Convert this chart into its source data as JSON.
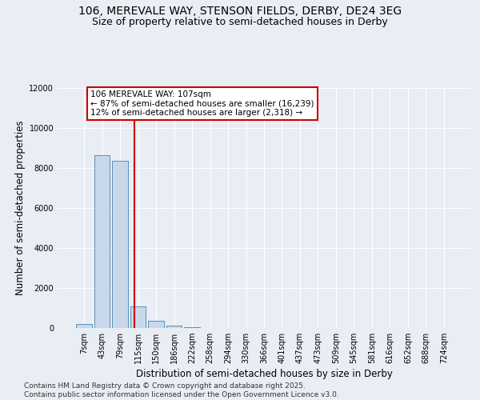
{
  "title_line1": "106, MEREVALE WAY, STENSON FIELDS, DERBY, DE24 3EG",
  "title_line2": "Size of property relative to semi-detached houses in Derby",
  "xlabel": "Distribution of semi-detached houses by size in Derby",
  "ylabel": "Number of semi-detached properties",
  "categories": [
    "7sqm",
    "43sqm",
    "79sqm",
    "115sqm",
    "150sqm",
    "186sqm",
    "222sqm",
    "258sqm",
    "294sqm",
    "330sqm",
    "366sqm",
    "401sqm",
    "437sqm",
    "473sqm",
    "509sqm",
    "545sqm",
    "581sqm",
    "616sqm",
    "652sqm",
    "688sqm",
    "724sqm"
  ],
  "values": [
    200,
    8650,
    8350,
    1100,
    350,
    120,
    30,
    0,
    0,
    0,
    0,
    0,
    0,
    0,
    0,
    0,
    0,
    0,
    0,
    0,
    0
  ],
  "bar_color": "#c8d8ea",
  "bar_edge_color": "#5590b8",
  "vline_x_pos": 2.78,
  "vline_color": "#cc0000",
  "annotation_text": "106 MEREVALE WAY: 107sqm\n← 87% of semi-detached houses are smaller (16,239)\n12% of semi-detached houses are larger (2,318) →",
  "annotation_box_color": "white",
  "annotation_box_edge": "#cc0000",
  "ylim": [
    0,
    12000
  ],
  "yticks": [
    0,
    2000,
    4000,
    6000,
    8000,
    10000,
    12000
  ],
  "background_color": "#e8eef4",
  "footer_text": "Contains HM Land Registry data © Crown copyright and database right 2025.\nContains public sector information licensed under the Open Government Licence v3.0.",
  "title_fontsize": 10,
  "subtitle_fontsize": 9,
  "xlabel_fontsize": 8.5,
  "ylabel_fontsize": 8.5,
  "tick_fontsize": 7,
  "footer_fontsize": 6.5
}
